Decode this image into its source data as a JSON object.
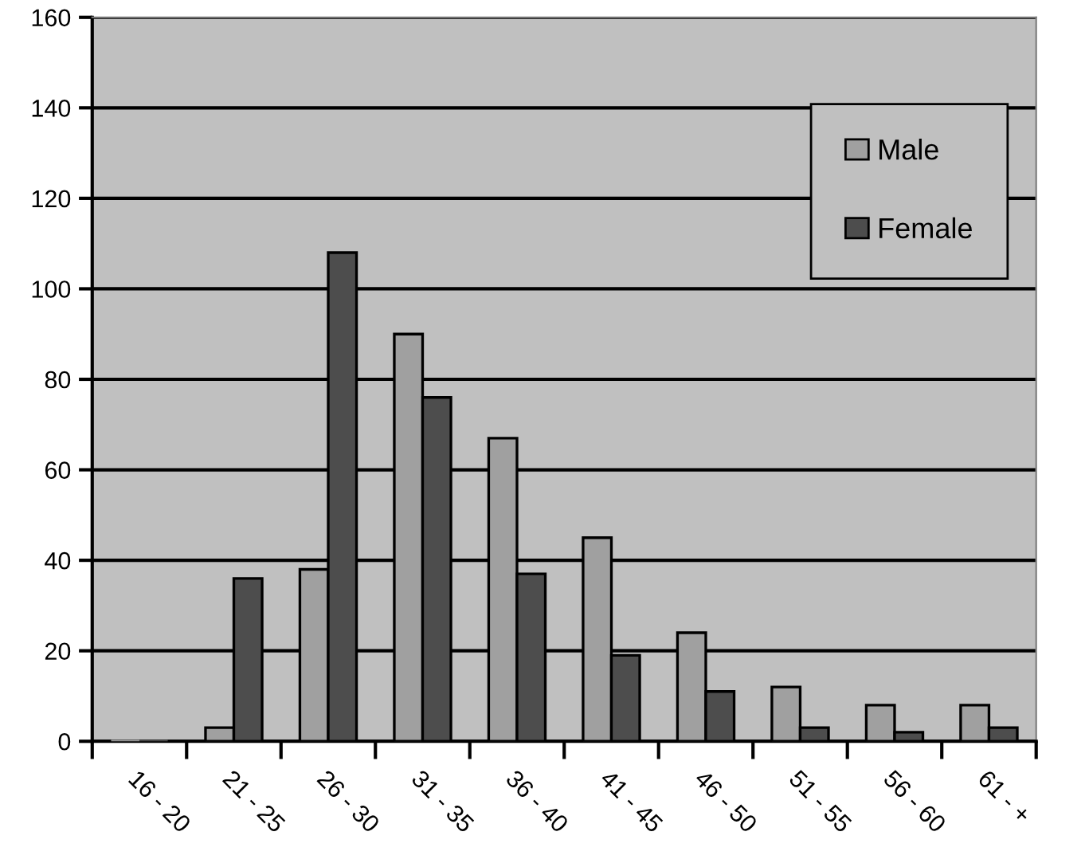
{
  "chart_data": {
    "type": "bar",
    "categories": [
      "16 - 20",
      "21 - 25",
      "26 - 30",
      "31 - 35",
      "36 - 40",
      "41 - 45",
      "46 - 50",
      "51 - 55",
      "56 - 60",
      "61 - +"
    ],
    "series": [
      {
        "name": "Male",
        "color": "#a0a0a0",
        "values": [
          0,
          3,
          38,
          90,
          67,
          45,
          24,
          12,
          8,
          8
        ]
      },
      {
        "name": "Female",
        "color": "#4d4d4d",
        "values": [
          0,
          36,
          108,
          76,
          37,
          19,
          11,
          3,
          2,
          3
        ]
      }
    ],
    "ylim": [
      0,
      160
    ],
    "yticks": [
      0,
      20,
      40,
      60,
      80,
      100,
      120,
      140,
      160
    ],
    "grid": "y",
    "legend": "top right"
  }
}
